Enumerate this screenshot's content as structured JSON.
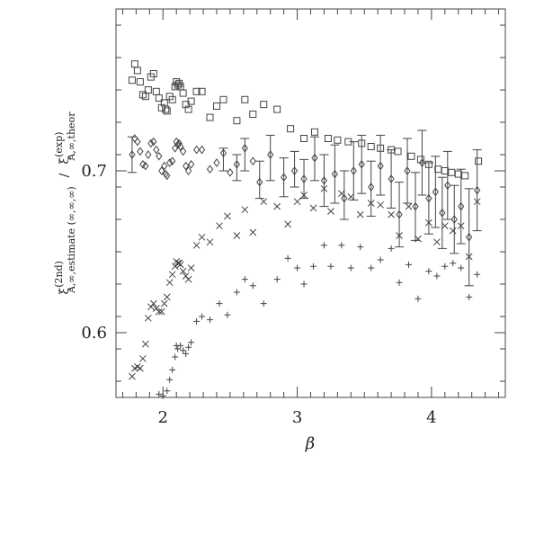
{
  "chart_data": {
    "type": "scatter",
    "title": "",
    "xlabel": "β",
    "ylabel_parts": {
      "num_symbol": "ξ",
      "num_sup": "(2nd)",
      "num_sub": "A,∞,estimate (∞,∞,∞)",
      "slash": "/",
      "den_symbol": "ξ",
      "den_sup": "(exp)",
      "den_sub": "A,∞,theor"
    },
    "xlim": [
      1.65,
      4.55
    ],
    "ylim": [
      0.56,
      0.8
    ],
    "x_ticks": [
      2,
      3,
      4
    ],
    "x_tick_labels": [
      "2",
      "3",
      "4"
    ],
    "y_ticks": [
      0.6,
      0.7
    ],
    "y_tick_labels": [
      "0.6",
      "0.7"
    ],
    "grid": false,
    "series": [
      {
        "marker": "square",
        "points": [
          [
            1.77,
            0.756
          ],
          [
            1.79,
            0.766
          ],
          [
            1.81,
            0.762
          ],
          [
            1.83,
            0.755
          ],
          [
            1.85,
            0.747
          ],
          [
            1.87,
            0.746
          ],
          [
            1.89,
            0.75
          ],
          [
            1.91,
            0.758
          ],
          [
            1.93,
            0.76
          ],
          [
            1.95,
            0.749
          ],
          [
            1.97,
            0.745
          ],
          [
            1.99,
            0.739
          ],
          [
            2.01,
            0.742
          ],
          [
            2.02,
            0.738
          ],
          [
            2.03,
            0.737
          ],
          [
            2.05,
            0.746
          ],
          [
            2.07,
            0.744
          ],
          [
            2.09,
            0.752
          ],
          [
            2.1,
            0.755
          ],
          [
            2.11,
            0.753
          ],
          [
            2.12,
            0.754
          ],
          [
            2.13,
            0.752
          ],
          [
            2.15,
            0.748
          ],
          [
            2.17,
            0.741
          ],
          [
            2.19,
            0.738
          ],
          [
            2.21,
            0.743
          ],
          [
            2.25,
            0.749
          ],
          [
            2.29,
            0.749
          ],
          [
            2.35,
            0.733
          ],
          [
            2.4,
            0.74
          ],
          [
            2.45,
            0.744
          ],
          [
            2.55,
            0.731
          ],
          [
            2.61,
            0.744
          ],
          [
            2.67,
            0.735
          ],
          [
            2.75,
            0.741
          ],
          [
            2.85,
            0.738
          ],
          [
            2.95,
            0.726
          ],
          [
            3.05,
            0.72
          ],
          [
            3.13,
            0.724
          ],
          [
            3.23,
            0.72
          ],
          [
            3.3,
            0.719
          ],
          [
            3.38,
            0.718
          ],
          [
            3.48,
            0.717
          ],
          [
            3.55,
            0.715
          ],
          [
            3.62,
            0.714
          ],
          [
            3.7,
            0.713
          ],
          [
            3.75,
            0.712
          ],
          [
            3.85,
            0.709
          ],
          [
            3.92,
            0.707
          ],
          [
            3.98,
            0.704
          ],
          [
            4.05,
            0.701
          ],
          [
            4.1,
            0.7
          ],
          [
            4.15,
            0.699
          ],
          [
            4.2,
            0.698
          ],
          [
            4.25,
            0.697
          ],
          [
            4.35,
            0.706
          ]
        ]
      },
      {
        "marker": "diamond",
        "points": [
          [
            1.77,
            0.71
          ],
          [
            1.79,
            0.72
          ],
          [
            1.81,
            0.718
          ],
          [
            1.83,
            0.712
          ],
          [
            1.85,
            0.704
          ],
          [
            1.87,
            0.703
          ],
          [
            1.89,
            0.71
          ],
          [
            1.91,
            0.717
          ],
          [
            1.93,
            0.718
          ],
          [
            1.95,
            0.713
          ],
          [
            1.97,
            0.709
          ],
          [
            1.99,
            0.7
          ],
          [
            2.01,
            0.703
          ],
          [
            2.02,
            0.698
          ],
          [
            2.03,
            0.697
          ],
          [
            2.05,
            0.705
          ],
          [
            2.07,
            0.706
          ],
          [
            2.09,
            0.714
          ],
          [
            2.1,
            0.718
          ],
          [
            2.11,
            0.716
          ],
          [
            2.12,
            0.717
          ],
          [
            2.13,
            0.715
          ],
          [
            2.15,
            0.712
          ],
          [
            2.17,
            0.703
          ],
          [
            2.19,
            0.7
          ],
          [
            2.21,
            0.704
          ],
          [
            2.25,
            0.713
          ],
          [
            2.29,
            0.713
          ],
          [
            2.35,
            0.701
          ],
          [
            2.4,
            0.705
          ],
          [
            2.45,
            0.711
          ],
          [
            2.5,
            0.699
          ],
          [
            2.55,
            0.704
          ],
          [
            2.61,
            0.714
          ],
          [
            2.67,
            0.706
          ],
          [
            2.72,
            0.693
          ],
          [
            2.8,
            0.71
          ],
          [
            2.9,
            0.696
          ],
          [
            2.98,
            0.7
          ],
          [
            3.05,
            0.695
          ],
          [
            3.13,
            0.708
          ],
          [
            3.2,
            0.694
          ],
          [
            3.28,
            0.698
          ],
          [
            3.35,
            0.683
          ],
          [
            3.42,
            0.7
          ],
          [
            3.48,
            0.704
          ],
          [
            3.55,
            0.69
          ],
          [
            3.62,
            0.703
          ],
          [
            3.7,
            0.695
          ],
          [
            3.76,
            0.673
          ],
          [
            3.82,
            0.7
          ],
          [
            3.88,
            0.678
          ],
          [
            3.93,
            0.705
          ],
          [
            3.98,
            0.683
          ],
          [
            4.03,
            0.687
          ],
          [
            4.08,
            0.674
          ],
          [
            4.12,
            0.691
          ],
          [
            4.17,
            0.67
          ],
          [
            4.22,
            0.678
          ],
          [
            4.28,
            0.659
          ],
          [
            4.34,
            0.688
          ]
        ]
      },
      {
        "marker": "cross",
        "points": [
          [
            1.77,
            0.573
          ],
          [
            1.79,
            0.578
          ],
          [
            1.81,
            0.579
          ],
          [
            1.83,
            0.578
          ],
          [
            1.85,
            0.584
          ],
          [
            1.87,
            0.593
          ],
          [
            1.89,
            0.609
          ],
          [
            1.91,
            0.616
          ],
          [
            1.93,
            0.618
          ],
          [
            1.95,
            0.615
          ],
          [
            1.97,
            0.613
          ],
          [
            1.99,
            0.613
          ],
          [
            2.01,
            0.618
          ],
          [
            2.03,
            0.622
          ],
          [
            2.05,
            0.631
          ],
          [
            2.07,
            0.636
          ],
          [
            2.09,
            0.641
          ],
          [
            2.1,
            0.644
          ],
          [
            2.11,
            0.643
          ],
          [
            2.12,
            0.643
          ],
          [
            2.13,
            0.642
          ],
          [
            2.15,
            0.638
          ],
          [
            2.17,
            0.635
          ],
          [
            2.19,
            0.633
          ],
          [
            2.21,
            0.64
          ],
          [
            2.25,
            0.654
          ],
          [
            2.29,
            0.659
          ],
          [
            2.35,
            0.656
          ],
          [
            2.42,
            0.666
          ],
          [
            2.48,
            0.672
          ],
          [
            2.55,
            0.66
          ],
          [
            2.61,
            0.676
          ],
          [
            2.67,
            0.662
          ],
          [
            2.75,
            0.681
          ],
          [
            2.85,
            0.678
          ],
          [
            2.93,
            0.667
          ],
          [
            3.0,
            0.681
          ],
          [
            3.05,
            0.685
          ],
          [
            3.12,
            0.677
          ],
          [
            3.2,
            0.689
          ],
          [
            3.25,
            0.675
          ],
          [
            3.33,
            0.686
          ],
          [
            3.4,
            0.684
          ],
          [
            3.47,
            0.673
          ],
          [
            3.55,
            0.68
          ],
          [
            3.62,
            0.679
          ],
          [
            3.7,
            0.673
          ],
          [
            3.76,
            0.66
          ],
          [
            3.83,
            0.678
          ],
          [
            3.9,
            0.658
          ],
          [
            3.98,
            0.668
          ],
          [
            4.04,
            0.656
          ],
          [
            4.1,
            0.666
          ],
          [
            4.16,
            0.663
          ],
          [
            4.22,
            0.666
          ],
          [
            4.28,
            0.647
          ],
          [
            4.34,
            0.681
          ]
        ]
      },
      {
        "marker": "plus",
        "points": [
          [
            1.97,
            0.562
          ],
          [
            2.0,
            0.561
          ],
          [
            2.03,
            0.564
          ],
          [
            2.05,
            0.571
          ],
          [
            2.07,
            0.577
          ],
          [
            2.09,
            0.585
          ],
          [
            2.1,
            0.592
          ],
          [
            2.11,
            0.59
          ],
          [
            2.13,
            0.592
          ],
          [
            2.15,
            0.589
          ],
          [
            2.17,
            0.587
          ],
          [
            2.19,
            0.591
          ],
          [
            2.21,
            0.594
          ],
          [
            2.25,
            0.607
          ],
          [
            2.29,
            0.61
          ],
          [
            2.35,
            0.608
          ],
          [
            2.42,
            0.618
          ],
          [
            2.48,
            0.611
          ],
          [
            2.55,
            0.625
          ],
          [
            2.61,
            0.633
          ],
          [
            2.67,
            0.629
          ],
          [
            2.75,
            0.618
          ],
          [
            2.85,
            0.633
          ],
          [
            2.93,
            0.646
          ],
          [
            3.0,
            0.64
          ],
          [
            3.05,
            0.63
          ],
          [
            3.12,
            0.641
          ],
          [
            3.2,
            0.654
          ],
          [
            3.25,
            0.641
          ],
          [
            3.33,
            0.654
          ],
          [
            3.4,
            0.64
          ],
          [
            3.47,
            0.653
          ],
          [
            3.55,
            0.64
          ],
          [
            3.62,
            0.645
          ],
          [
            3.7,
            0.652
          ],
          [
            3.76,
            0.631
          ],
          [
            3.83,
            0.642
          ],
          [
            3.9,
            0.621
          ],
          [
            3.98,
            0.638
          ],
          [
            4.04,
            0.635
          ],
          [
            4.1,
            0.641
          ],
          [
            4.16,
            0.643
          ],
          [
            4.22,
            0.64
          ],
          [
            4.28,
            0.622
          ],
          [
            4.34,
            0.636
          ]
        ]
      }
    ],
    "error_bars": [
      [
        1.77,
        0.699,
        0.721
      ],
      [
        2.45,
        0.7,
        0.714
      ],
      [
        2.55,
        0.694,
        0.71
      ],
      [
        2.61,
        0.7,
        0.72
      ],
      [
        2.72,
        0.683,
        0.706
      ],
      [
        2.8,
        0.694,
        0.722
      ],
      [
        2.9,
        0.684,
        0.708
      ],
      [
        2.98,
        0.69,
        0.712
      ],
      [
        3.05,
        0.683,
        0.707
      ],
      [
        3.13,
        0.694,
        0.721
      ],
      [
        3.2,
        0.678,
        0.71
      ],
      [
        3.28,
        0.68,
        0.716
      ],
      [
        3.35,
        0.67,
        0.7
      ],
      [
        3.42,
        0.682,
        0.718
      ],
      [
        3.48,
        0.686,
        0.722
      ],
      [
        3.55,
        0.672,
        0.706
      ],
      [
        3.62,
        0.685,
        0.722
      ],
      [
        3.7,
        0.677,
        0.713
      ],
      [
        3.76,
        0.653,
        0.693
      ],
      [
        3.82,
        0.68,
        0.72
      ],
      [
        3.88,
        0.657,
        0.699
      ],
      [
        3.93,
        0.685,
        0.725
      ],
      [
        3.98,
        0.661,
        0.705
      ],
      [
        4.03,
        0.665,
        0.709
      ],
      [
        4.08,
        0.652,
        0.696
      ],
      [
        4.12,
        0.67,
        0.712
      ],
      [
        4.17,
        0.649,
        0.691
      ],
      [
        4.22,
        0.655,
        0.701
      ],
      [
        4.28,
        0.629,
        0.689
      ],
      [
        4.34,
        0.663,
        0.713
      ]
    ]
  }
}
